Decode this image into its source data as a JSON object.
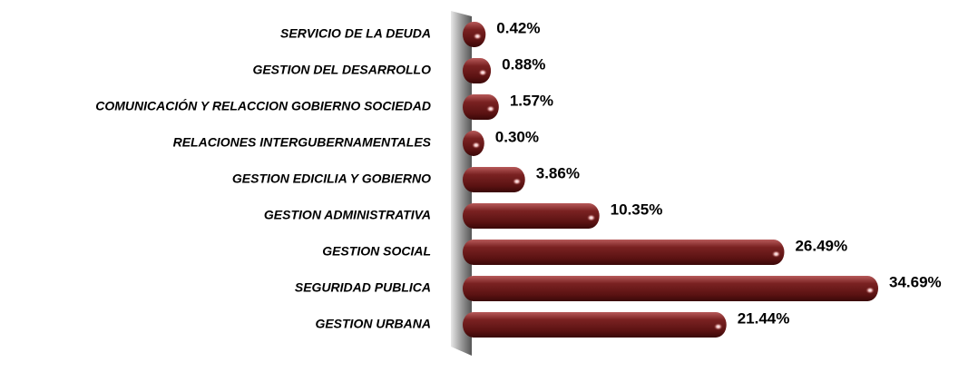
{
  "chart_data": {
    "type": "bar",
    "orientation": "horizontal",
    "color": "#6e1c1c",
    "categories": [
      "SERVICIO DE LA DEUDA",
      "GESTION DEL DESARROLLO",
      "COMUNICACIÓN Y RELACCION GOBIERNO SOCIEDAD",
      "RELACIONES INTERGUBERNAMENTALES",
      "GESTION EDICILIA Y GOBIERNO",
      "GESTION ADMINISTRATIVA",
      "GESTION SOCIAL",
      "SEGURIDAD PUBLICA",
      "GESTION URBANA"
    ],
    "values": [
      0.42,
      0.88,
      1.57,
      0.3,
      3.86,
      10.35,
      26.49,
      34.69,
      21.44
    ],
    "value_labels": [
      "0.42%",
      "0.88%",
      "1.57%",
      "0.30%",
      "3.86%",
      "10.35%",
      "26.49%",
      "34.69%",
      "21.44%"
    ]
  }
}
